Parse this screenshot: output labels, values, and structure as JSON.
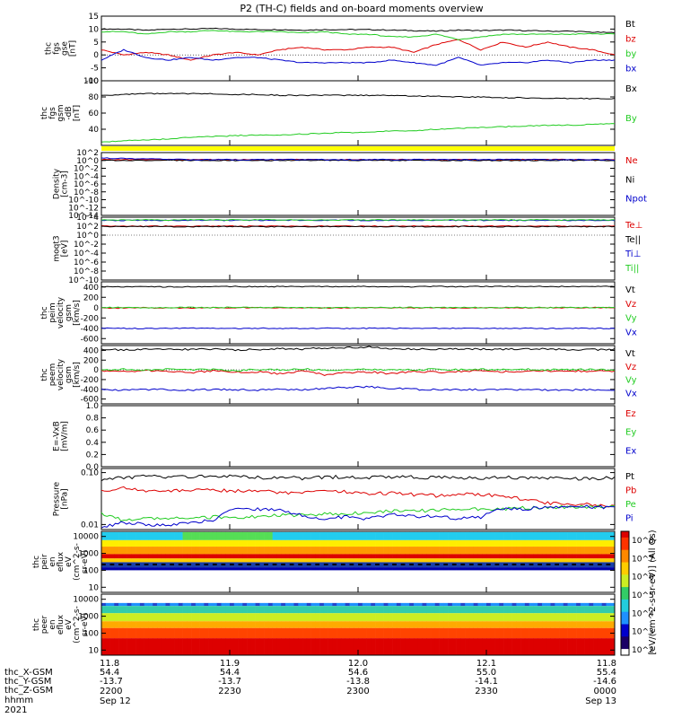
{
  "title": "P2 (TH-C) fields and on-board moments overview",
  "time_labels": [
    "11.8",
    "11.9",
    "12.0",
    "12.1",
    "11.8"
  ],
  "time_x_row": [
    "54.4",
    "54.4",
    "54.6",
    "55.0",
    "55.4"
  ],
  "time_y_row": [
    "-13.7",
    "-13.7",
    "-13.8",
    "-14.1",
    "-14.6"
  ],
  "time_hhmm": [
    "2200",
    "2230",
    "2300",
    "2330",
    "0000"
  ],
  "time_dates": {
    "first": "Sep 12",
    "last": "Sep 13"
  },
  "bottom_labels": [
    "thc_X-GSM",
    "thc_Y-GSM",
    "thc_Z-GSM",
    "hhmm",
    "2021"
  ],
  "colorbar_label": "[eV/(cm^2-s-sr-eV)] (All Qs)",
  "colorbar_ticks": [
    "10^8",
    "10^7",
    "10^6",
    "10^5",
    "10^4",
    "10^3",
    "10^2"
  ],
  "colors": {
    "black": "#000000",
    "red": "#dd0000",
    "green": "#22cc22",
    "blue": "#0000cc",
    "yellow": "#ffff00"
  },
  "chart_data": [
    {
      "type": "line",
      "ylabel": [
        "thc",
        "fgs",
        "gse",
        "[nT]"
      ],
      "ylim": [
        -10,
        15
      ],
      "yticks": [
        "15",
        "10",
        "5",
        "0",
        "-5",
        "-10"
      ],
      "series": [
        {
          "name": "Bt",
          "color": "#000000",
          "values": [
            10,
            10,
            9.5,
            10,
            10,
            10.2,
            10,
            9.8,
            9.8,
            9.6,
            9.8,
            9.8,
            9.8,
            9.6,
            9.4,
            9.2,
            9.6,
            9.4,
            9.6,
            9.4,
            9.2,
            9.2,
            8.8,
            8.6
          ]
        },
        {
          "name": "bz",
          "color": "#dd0000",
          "values": [
            2,
            0,
            1,
            0,
            -2,
            0,
            1,
            0,
            2,
            3,
            2,
            2,
            3,
            3,
            1,
            4,
            6,
            2,
            5,
            3,
            5,
            3,
            2,
            0
          ]
        },
        {
          "name": "by",
          "color": "#22cc22",
          "values": [
            9,
            9,
            8,
            9,
            9,
            9.5,
            9,
            9,
            9,
            8.5,
            9,
            8,
            8,
            7,
            7,
            8,
            6,
            7,
            8,
            8,
            8,
            8,
            8.2,
            8
          ]
        },
        {
          "name": "bx",
          "color": "#0000cc",
          "values": [
            -2,
            2,
            -1,
            -2,
            -1,
            -2,
            -1,
            -1,
            -2,
            -3,
            -3,
            -3,
            -3,
            -2,
            -3,
            -4,
            -1,
            -4,
            -3,
            -3,
            -2,
            -3,
            -2,
            -2
          ]
        }
      ],
      "legend": [
        "Bt",
        "bz",
        "by",
        "bx"
      ]
    },
    {
      "type": "line",
      "ylabel": [
        "thc",
        "fgs",
        "gsm",
        "-dB",
        "[nT]"
      ],
      "ylim": [
        20,
        100
      ],
      "yticks": [
        "100",
        "80",
        "60",
        "40"
      ],
      "series": [
        {
          "name": "Bx",
          "color": "#000000",
          "values": [
            82,
            83,
            84,
            84,
            84,
            84,
            83,
            83,
            82,
            82,
            82,
            82,
            82,
            82,
            81,
            81,
            80,
            80,
            79,
            79,
            78,
            78,
            78,
            78
          ]
        },
        {
          "name": "By",
          "color": "#22cc22",
          "values": [
            24,
            26,
            27,
            28,
            30,
            31,
            32,
            33,
            33,
            34,
            35,
            36,
            36,
            38,
            38,
            40,
            41,
            42,
            43,
            44,
            45,
            45,
            46,
            47
          ]
        }
      ],
      "legend": [
        "Bx",
        "By"
      ]
    },
    {
      "type": "line",
      "ylabel": [
        "Density",
        "[cm-3]"
      ],
      "ylim": [
        -14,
        2
      ],
      "yticks": [
        "10^2",
        "10^0",
        "10^-2",
        "10^-4",
        "10^-6",
        "10^-8",
        "10^-10",
        "10^-12",
        "10^-14"
      ],
      "series": [
        {
          "name": "Ne",
          "color": "#dd0000",
          "values": [
            0.2,
            0.2,
            0.2,
            0.2,
            0.2,
            0.2,
            0.2,
            0.2,
            0.2,
            0.2,
            0.2,
            0.2,
            0.2,
            0.2,
            0.2,
            0.2,
            0.2,
            0.2,
            0.2,
            0.2,
            0.2,
            0.2,
            0.2,
            0.2
          ]
        },
        {
          "name": "Ni",
          "color": "#000000",
          "values": [
            0,
            0,
            0,
            0,
            0,
            0,
            0,
            0,
            0,
            0,
            0,
            0,
            0,
            0,
            0,
            0,
            0,
            0,
            0,
            0,
            0,
            0,
            0,
            0
          ]
        },
        {
          "name": "Npot",
          "color": "#0000cc",
          "values": [
            0.6,
            0.5,
            0.4,
            0.3,
            0.2,
            0.2,
            0.2,
            0.2,
            0.2,
            0.2,
            0.2,
            0.2,
            0.2,
            0.2,
            0.2,
            0.2,
            0.2,
            0.2,
            0.2,
            0.2,
            0.2,
            0.2,
            0.2,
            0.2
          ]
        }
      ],
      "legend": [
        "Ne",
        "Ni",
        "Npot"
      ]
    },
    {
      "type": "line",
      "ylabel": [
        "moqt3",
        "[eV]"
      ],
      "ylim": [
        -10,
        4
      ],
      "yticks": [
        "10^4",
        "10^2",
        "10^0",
        "10^-2",
        "10^-4",
        "10^-6",
        "10^-8",
        "10^-10"
      ],
      "series": [
        {
          "name": "Te⊥",
          "color": "#dd0000",
          "values": [
            2,
            2,
            2,
            2,
            2,
            2,
            2,
            2,
            2,
            2,
            2,
            2,
            2,
            2,
            2,
            2,
            2,
            2,
            2,
            2,
            2,
            2,
            2,
            2
          ]
        },
        {
          "name": "Te||",
          "color": "#000000",
          "values": [
            1.9,
            1.9,
            1.9,
            1.9,
            1.9,
            1.9,
            1.9,
            1.9,
            1.9,
            1.9,
            1.9,
            1.9,
            1.9,
            1.9,
            1.9,
            1.9,
            1.9,
            1.9,
            1.9,
            1.9,
            1.9,
            1.9,
            1.9,
            1.9
          ]
        },
        {
          "name": "Ti⊥",
          "color": "#0000cc",
          "values": [
            3.3,
            3.3,
            3.3,
            3.3,
            3.3,
            3.3,
            3.3,
            3.3,
            3.3,
            3.3,
            3.3,
            3.3,
            3.3,
            3.3,
            3.3,
            3.3,
            3.3,
            3.3,
            3.3,
            3.3,
            3.3,
            3.3,
            3.3,
            3.3
          ]
        },
        {
          "name": "Ti||",
          "color": "#22cc22",
          "values": [
            3.4,
            3.4,
            3.4,
            3.4,
            3.4,
            3.4,
            3.4,
            3.4,
            3.4,
            3.4,
            3.4,
            3.4,
            3.4,
            3.4,
            3.4,
            3.4,
            3.4,
            3.4,
            3.4,
            3.4,
            3.4,
            3.4,
            3.4,
            3.4
          ]
        }
      ],
      "legend": [
        "Te⊥",
        "Te||",
        "Ti⊥",
        "Ti||"
      ]
    },
    {
      "type": "line",
      "ylabel": [
        "thc",
        "peim",
        "velocity",
        "gsm",
        "[km/s]"
      ],
      "ylim": [
        -700,
        500
      ],
      "yticks": [
        "400",
        "200",
        "0",
        "-200",
        "-400",
        "-600"
      ],
      "series": [
        {
          "name": "Vt",
          "color": "#000000",
          "values": [
            410,
            405,
            410,
            400,
            405,
            410,
            410,
            405,
            410,
            408,
            410,
            405,
            410,
            400,
            405,
            410,
            405,
            410,
            410,
            405,
            410,
            405,
            405,
            410
          ]
        },
        {
          "name": "Vz",
          "color": "#dd0000",
          "values": [
            -5,
            -8,
            0,
            -10,
            -5,
            0,
            -5,
            5,
            -5,
            0,
            -8,
            -5,
            0,
            -5,
            -5,
            0,
            -10,
            -5,
            0,
            -5,
            0,
            -5,
            0,
            -5
          ]
        },
        {
          "name": "Vy",
          "color": "#22cc22",
          "values": [
            0,
            5,
            -5,
            0,
            5,
            0,
            10,
            0,
            5,
            0,
            -5,
            5,
            0,
            0,
            5,
            0,
            5,
            0,
            0,
            5,
            0,
            5,
            0,
            0
          ]
        },
        {
          "name": "Vx",
          "color": "#0000cc",
          "values": [
            -400,
            -402,
            -405,
            -400,
            -398,
            -402,
            -405,
            -400,
            -405,
            -402,
            -400,
            -405,
            -400,
            -402,
            -398,
            -402,
            -400,
            -405,
            -402,
            -400,
            -405,
            -402,
            -400,
            -405
          ]
        }
      ],
      "legend": [
        "Vt",
        "Vz",
        "Vy",
        "Vx"
      ]
    },
    {
      "type": "line",
      "ylabel": [
        "thc",
        "peem",
        "velocity",
        "gsm",
        "[km/s]"
      ],
      "ylim": [
        -700,
        500
      ],
      "yticks": [
        "400",
        "200",
        "0",
        "-200",
        "-400",
        "-600"
      ],
      "series": [
        {
          "name": "Vt",
          "color": "#000000",
          "values": [
            420,
            410,
            430,
            415,
            420,
            425,
            410,
            420,
            440,
            430,
            450,
            460,
            470,
            440,
            430,
            420,
            430,
            425,
            420,
            430,
            425,
            420,
            415,
            420
          ]
        },
        {
          "name": "Vz",
          "color": "#dd0000",
          "values": [
            -20,
            -40,
            -10,
            -30,
            -60,
            -20,
            -50,
            -40,
            -80,
            -30,
            -100,
            -60,
            -40,
            -80,
            -30,
            -50,
            -30,
            -20,
            -40,
            -30,
            -20,
            -30,
            -20,
            -30
          ]
        },
        {
          "name": "Vy",
          "color": "#22cc22",
          "values": [
            0,
            10,
            -10,
            20,
            0,
            10,
            -20,
            10,
            0,
            20,
            -10,
            0,
            10,
            -10,
            0,
            10,
            0,
            10,
            0,
            10,
            0,
            0,
            10,
            0
          ]
        },
        {
          "name": "Vx",
          "color": "#0000cc",
          "values": [
            -410,
            -420,
            -400,
            -410,
            -415,
            -405,
            -410,
            -420,
            -400,
            -410,
            -380,
            -360,
            -350,
            -380,
            -400,
            -410,
            -405,
            -410,
            -410,
            -415,
            -410,
            -415,
            -410,
            -415
          ]
        }
      ],
      "legend": [
        "Vt",
        "Vz",
        "Vy",
        "Vx"
      ]
    },
    {
      "type": "line",
      "ylabel": [
        "E=-VxB",
        "[mV/m]"
      ],
      "ylim": [
        0,
        1
      ],
      "yticks": [
        "1.0",
        "0.8",
        "0.6",
        "0.4",
        "0.2",
        "0.0"
      ],
      "series": [],
      "legend": [
        "Ez",
        "Ey",
        "Ex"
      ],
      "legend_colors": [
        "#dd0000",
        "#22cc22",
        "#0000cc"
      ]
    },
    {
      "type": "line",
      "ylabel": [
        "Pressure",
        "[nPa]"
      ],
      "ylim": [
        0.008,
        0.12
      ],
      "yticks": [
        "0.10",
        "0.01"
      ],
      "series": [
        {
          "name": "Pt",
          "color": "#000000",
          "values": [
            0.075,
            0.08,
            0.085,
            0.082,
            0.083,
            0.085,
            0.084,
            0.08,
            0.082,
            0.078,
            0.082,
            0.083,
            0.08,
            0.084,
            0.082,
            0.08,
            0.08,
            0.078,
            0.082,
            0.08,
            0.078,
            0.075,
            0.078,
            0.08
          ]
        },
        {
          "name": "Pb",
          "color": "#dd0000",
          "values": [
            0.045,
            0.05,
            0.045,
            0.044,
            0.045,
            0.046,
            0.044,
            0.045,
            0.042,
            0.04,
            0.045,
            0.042,
            0.04,
            0.04,
            0.038,
            0.036,
            0.04,
            0.038,
            0.035,
            0.03,
            0.026,
            0.025,
            0.024,
            0.023
          ]
        },
        {
          "name": "Pe",
          "color": "#22cc22",
          "values": [
            0.016,
            0.012,
            0.013,
            0.013,
            0.013,
            0.014,
            0.014,
            0.014,
            0.015,
            0.015,
            0.016,
            0.016,
            0.017,
            0.018,
            0.018,
            0.019,
            0.02,
            0.02,
            0.02,
            0.021,
            0.021,
            0.022,
            0.022,
            0.022
          ]
        },
        {
          "name": "Pi",
          "color": "#0000cc",
          "values": [
            0.009,
            0.011,
            0.01,
            0.01,
            0.011,
            0.012,
            0.02,
            0.02,
            0.019,
            0.015,
            0.013,
            0.014,
            0.013,
            0.016,
            0.014,
            0.015,
            0.013,
            0.014,
            0.02,
            0.02,
            0.021,
            0.022,
            0.022,
            0.021
          ]
        }
      ],
      "legend": [
        "Pt",
        "Pb",
        "Pe",
        "Pi"
      ]
    },
    {
      "type": "heatmap",
      "ylabel": [
        "thc",
        "peir",
        "en",
        "eflux",
        "eV",
        "(cm^2-s-",
        "sr-eV)"
      ],
      "ylim": [
        5,
        20000
      ],
      "yticks": [
        "10000",
        "1000",
        "100",
        "10"
      ]
    },
    {
      "type": "heatmap",
      "ylabel": [
        "thc",
        "peer",
        "en",
        "eflux",
        "eV",
        "(cm^2-s-",
        "sr-eV)"
      ],
      "ylim": [
        5,
        20000
      ],
      "yticks": [
        "10000",
        "1000",
        "100",
        "10"
      ]
    }
  ]
}
